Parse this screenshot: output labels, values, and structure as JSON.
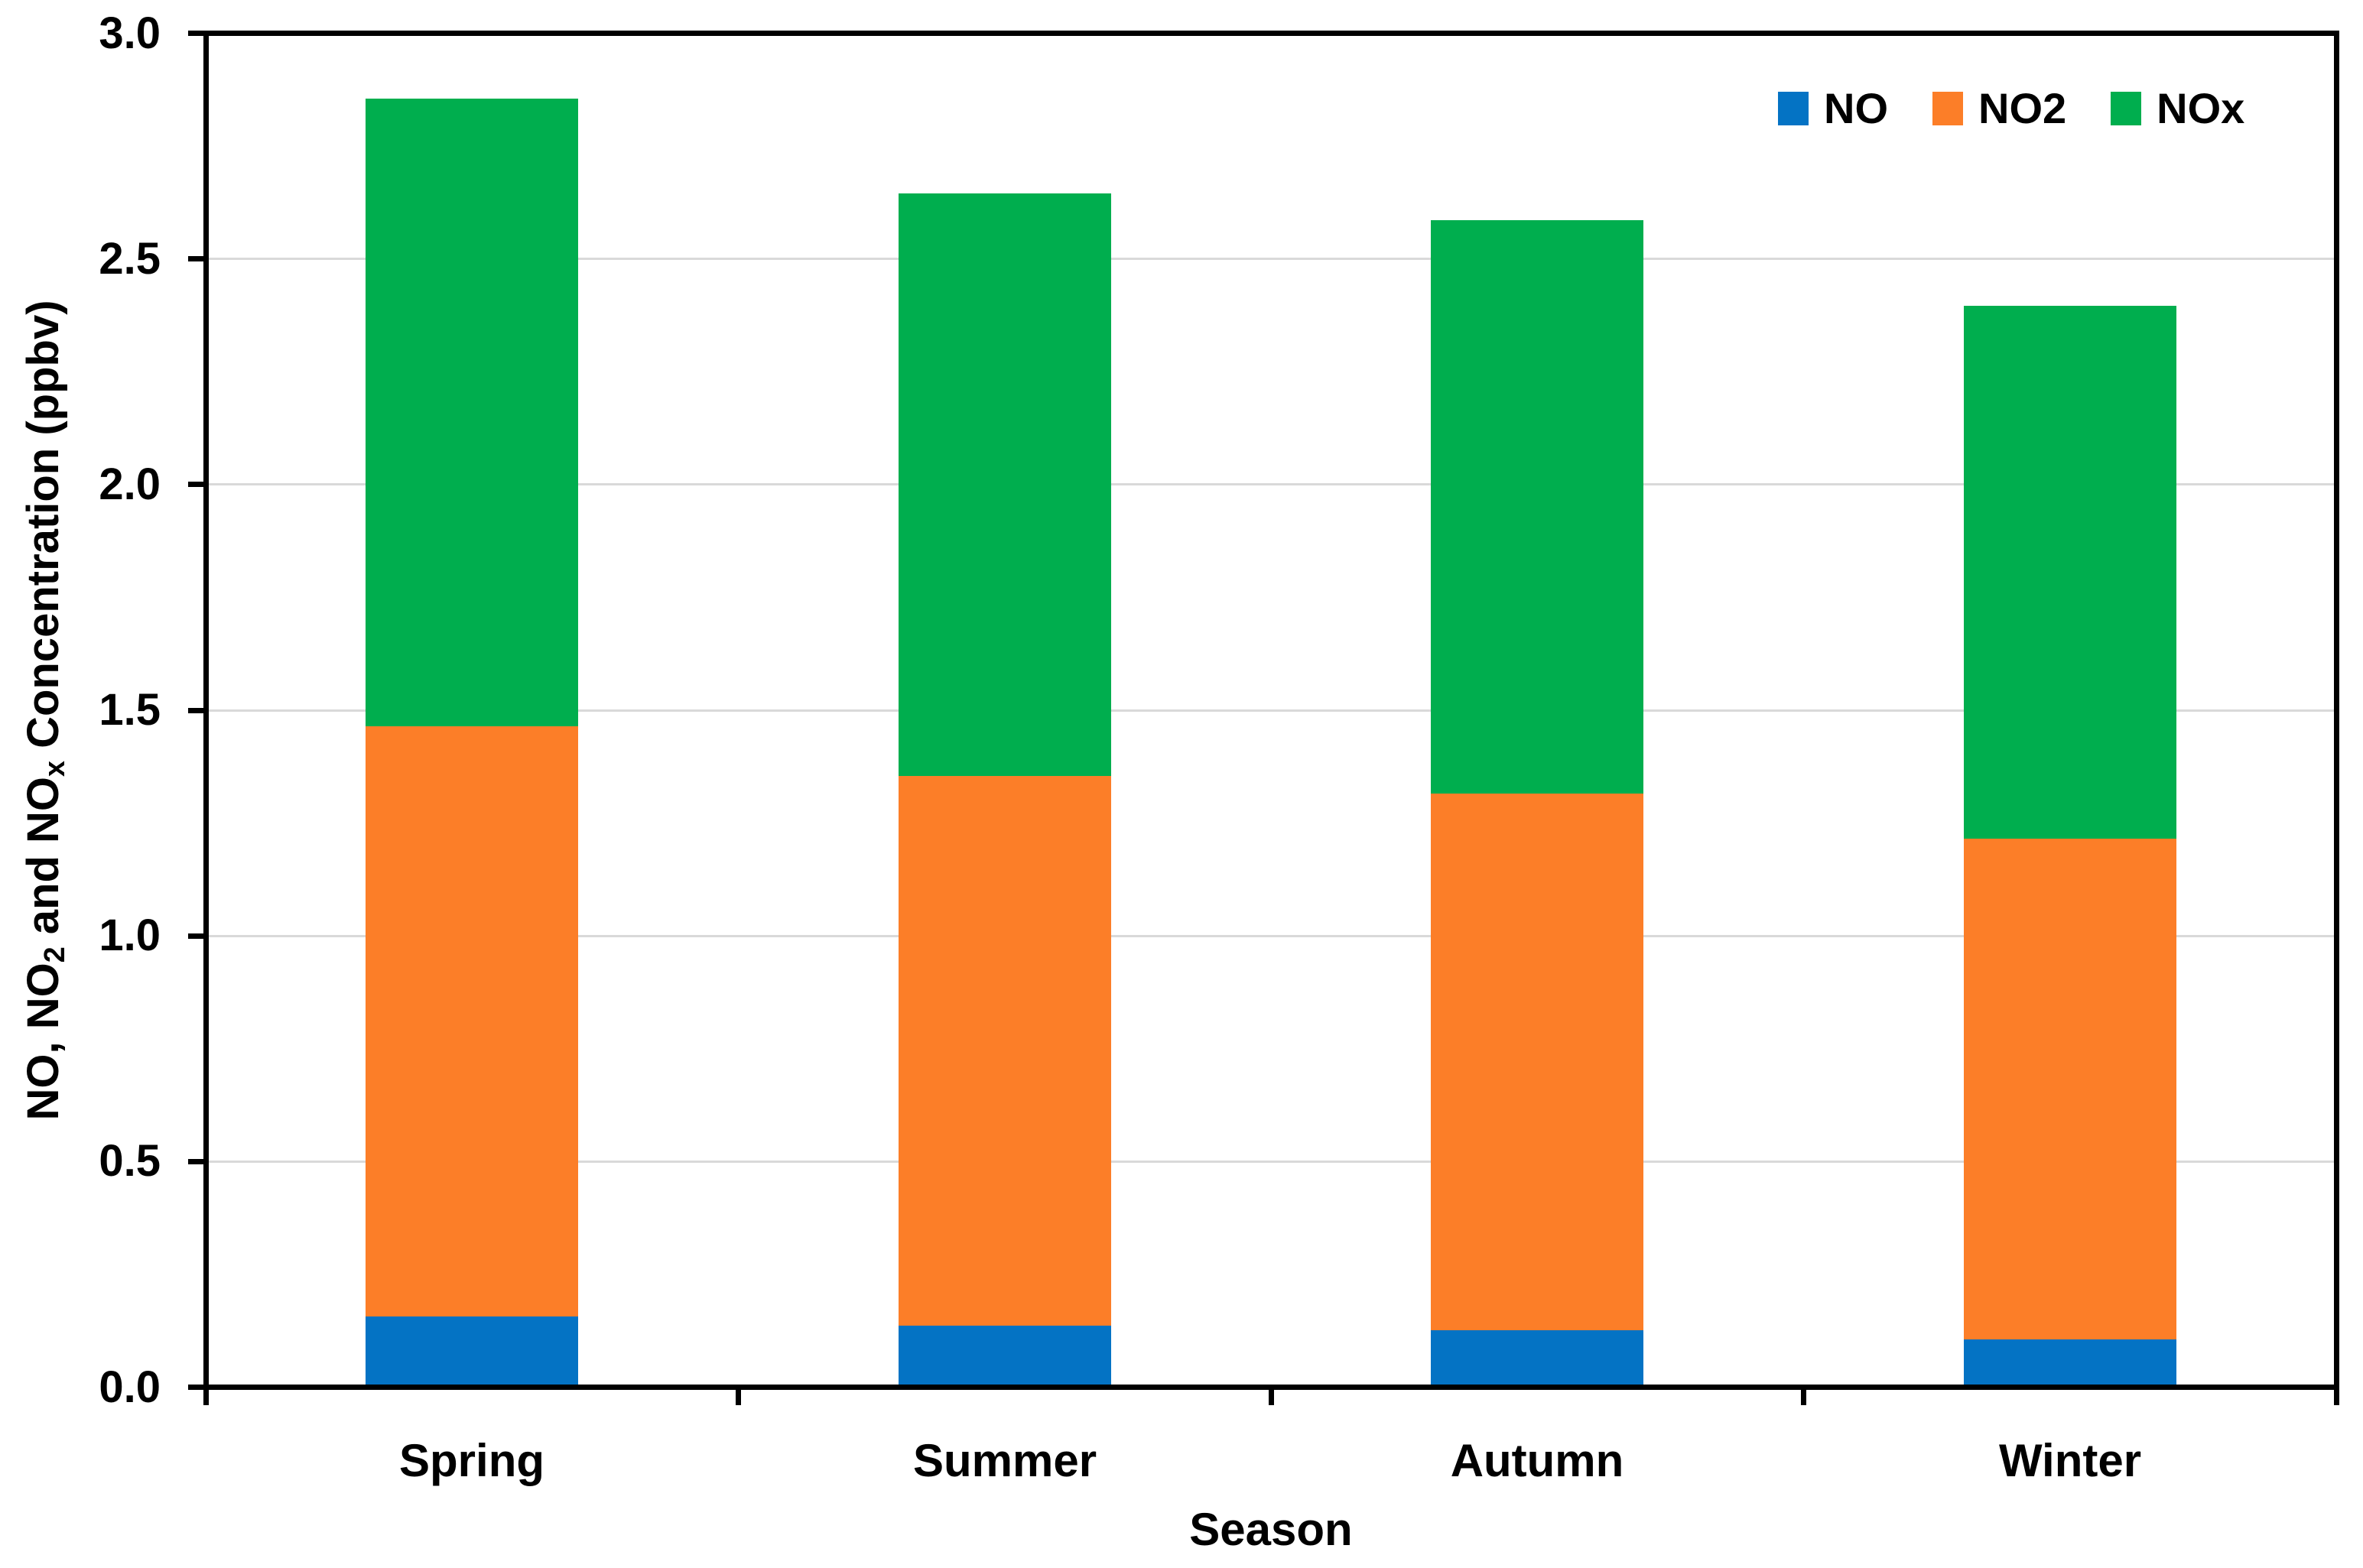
{
  "chart_data": {
    "type": "bar",
    "stacked": true,
    "title": "",
    "xlabel": "Season",
    "ylabel": "NO, NO2 and NOx Concentration (ppbv)",
    "ylabel_parts": [
      {
        "text": "NO, NO"
      },
      {
        "text": "2",
        "subscript": true
      },
      {
        "text": " and NO"
      },
      {
        "text": "x",
        "subscript": true
      },
      {
        "text": " Concentration (ppbv)"
      }
    ],
    "categories": [
      "Spring",
      "Summer",
      "Autumn",
      "Winter"
    ],
    "series": [
      {
        "name": "NO",
        "color": "#0473C4",
        "values": [
          0.15,
          0.13,
          0.12,
          0.1
        ]
      },
      {
        "name": "NO2",
        "color": "#FC7E28",
        "values": [
          1.31,
          1.22,
          1.19,
          1.11
        ]
      },
      {
        "name": "NOx",
        "color": "#00AE4E",
        "values": [
          1.39,
          1.29,
          1.27,
          1.18
        ]
      }
    ],
    "stack_totals": [
      2.85,
      2.64,
      2.58,
      2.39
    ],
    "cumulative_boundaries": {
      "Spring": [
        0.15,
        1.46,
        2.85
      ],
      "Summer": [
        0.13,
        1.35,
        2.64
      ],
      "Autumn": [
        0.12,
        1.31,
        2.58
      ],
      "Winter": [
        0.1,
        1.21,
        2.39
      ]
    },
    "ylim": [
      0.0,
      3.0
    ],
    "ytick_step": 0.5,
    "ytick_labels": [
      "0.0",
      "0.5",
      "1.0",
      "1.5",
      "2.0",
      "2.5",
      "3.0"
    ],
    "grid": true,
    "legend_position": "top-right",
    "legend_entries": [
      "NO",
      "NO2",
      "NOx"
    ]
  },
  "styles": {
    "grid_color": "#D9D9D9",
    "axis_color": "#000000",
    "background": "#FFFFFF",
    "text_color": "#000000"
  }
}
